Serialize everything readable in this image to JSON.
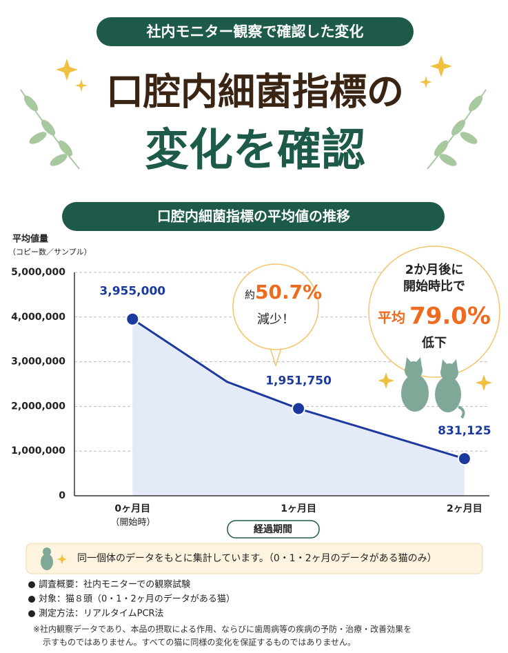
{
  "header": {
    "badge": "社内モニター観察で確認した変化",
    "title_line1": "口腔内細菌指標の",
    "title_line2": "変化を確認"
  },
  "chart_data": {
    "type": "line",
    "title": "口腔内細菌指標の平均値の推移",
    "y_label": "平均値量",
    "y_label_sub": "（コピー数／サンプル）",
    "x_label": "経過期間",
    "x_start_note": "（開始時）",
    "x": [
      0,
      0.57,
      1,
      2
    ],
    "xlim": [
      -0.35,
      2.15
    ],
    "xticks": [
      {
        "value": 0,
        "label": "0ヶ月目"
      },
      {
        "value": 1,
        "label": "1ヶ月目"
      },
      {
        "value": 2,
        "label": "2ヶ月目"
      }
    ],
    "series": [
      {
        "color": "#1c3a9e",
        "area_color": "#e4eaf8",
        "values": [
          3955000,
          2550000,
          1951750,
          831125
        ],
        "value_labels": [
          "3,955,000",
          null,
          "1,951,750",
          "831,125"
        ]
      }
    ],
    "ylim": [
      0,
      5000000
    ],
    "yticks": [
      0,
      {
        "value": 1000000,
        "label": "1,000,000"
      },
      {
        "value": 2000000,
        "label": "2,000,000"
      },
      {
        "value": 3000000,
        "label": "3,000,000"
      },
      {
        "value": 4000000,
        "label": "4,000,000"
      },
      {
        "value": 5000000,
        "label": "5,000,000"
      }
    ],
    "grid": true,
    "callout_1": {
      "prefix": "約",
      "value": "50.7%",
      "suffix": "減少！"
    },
    "callout_2": {
      "line1": "2か月後に",
      "line2": "開始時比で",
      "prefix": "平均",
      "value": "79.0%",
      "suffix": "低下"
    }
  },
  "note": "同一個体のデータをもとに集計しています。（0・1・2ヶ月のデータがある猫のみ）",
  "bullets": [
    "調査概要：社内モニターでの観察試験",
    "対象：猫８頭（0・1・2ヶ月のデータがある猫）",
    "測定方法：リアルタイムPCR法"
  ],
  "footnote": [
    "※社内観察データであり、本品の摂取による作用、ならびに歯周病等の疾病の予防・治療・改善効果を",
    "示すものではありません。すべての猫に同様の変化を保証するものではありません。"
  ]
}
